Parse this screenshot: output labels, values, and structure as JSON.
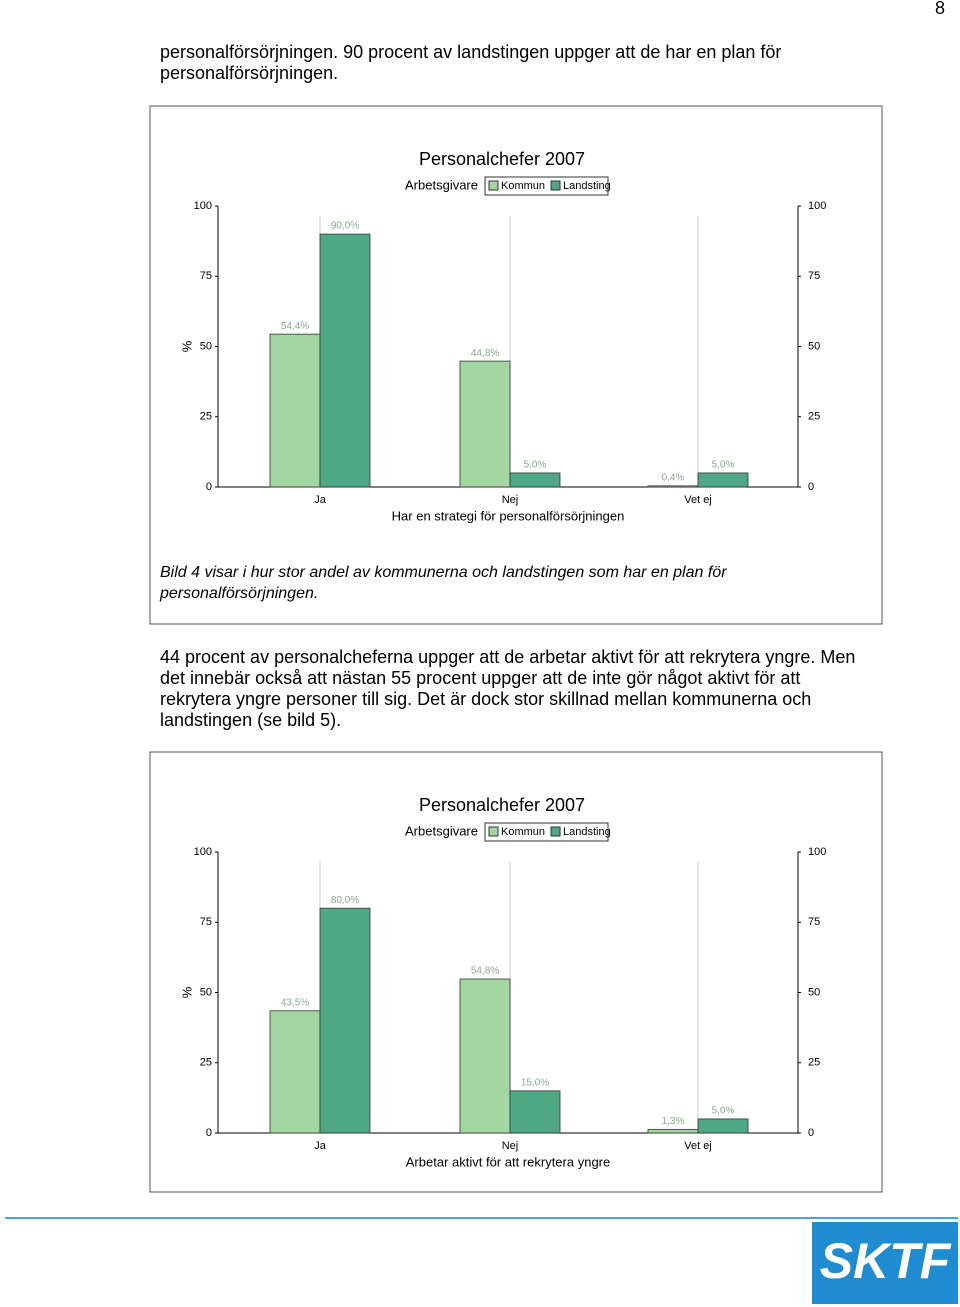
{
  "page_number": "8",
  "intro_lines": [
    "personalförsörjningen. 90 procent av landstingen uppger att de har en plan för",
    "personalförsörjningen."
  ],
  "body_lines": [
    "44 procent av personalcheferna uppger att de arbetar aktivt för att rekrytera yngre. Men",
    "det innebär också att nästan 55 procent uppger att de inte gör något aktivt för att",
    "rekrytera yngre personer till sig. Det är dock stor skillnad mellan kommunerna och",
    "landstingen (se bild 5)."
  ],
  "logo": "SKTF",
  "chart_data": [
    {
      "type": "bar",
      "title": "Personalchefer 2007",
      "legend_title": "Arbetsgivare",
      "categories": [
        "Ja",
        "Nej",
        "Vet ej"
      ],
      "series": [
        {
          "name": "Kommun",
          "color": "#a3d6a0",
          "values": [
            54.4,
            44.8,
            0.4
          ],
          "value_labels": [
            "54,4%",
            "44,8%",
            "0,4%"
          ]
        },
        {
          "name": "Landsting",
          "color": "#4fa884",
          "values": [
            90.0,
            5.0,
            5.0
          ],
          "value_labels": [
            "90,0%",
            "5,0%",
            "5,0%"
          ]
        }
      ],
      "ylabel": "%",
      "xlabel": "Har en strategi för personalförsörjningen",
      "ylim": [
        0,
        100
      ],
      "yticks": [
        0,
        25,
        50,
        75,
        100
      ],
      "y2lim": [
        0,
        100
      ],
      "y2ticks": [
        0,
        25,
        50,
        75,
        100
      ],
      "caption_lines": [
        "Bild 4 visar i hur stor andel av kommunerna och landstingen som har en plan för",
        "personalförsörjningen."
      ]
    },
    {
      "type": "bar",
      "title": "Personalchefer 2007",
      "legend_title": "Arbetsgivare",
      "categories": [
        "Ja",
        "Nej",
        "Vet ej"
      ],
      "series": [
        {
          "name": "Kommun",
          "color": "#a3d6a0",
          "values": [
            43.5,
            54.8,
            1.3
          ],
          "value_labels": [
            "43,5%",
            "54,8%",
            "1,3%"
          ]
        },
        {
          "name": "Landsting",
          "color": "#4fa884",
          "values": [
            80.0,
            15.0,
            5.0
          ],
          "value_labels": [
            "80,0%",
            "15,0%",
            "5,0%"
          ]
        }
      ],
      "ylabel": "%",
      "xlabel": "Arbetar aktivt för att rekrytera yngre",
      "ylim": [
        0,
        100
      ],
      "yticks": [
        0,
        25,
        50,
        75,
        100
      ],
      "y2lim": [
        0,
        100
      ],
      "y2ticks": [
        0,
        25,
        50,
        75,
        100
      ]
    }
  ]
}
